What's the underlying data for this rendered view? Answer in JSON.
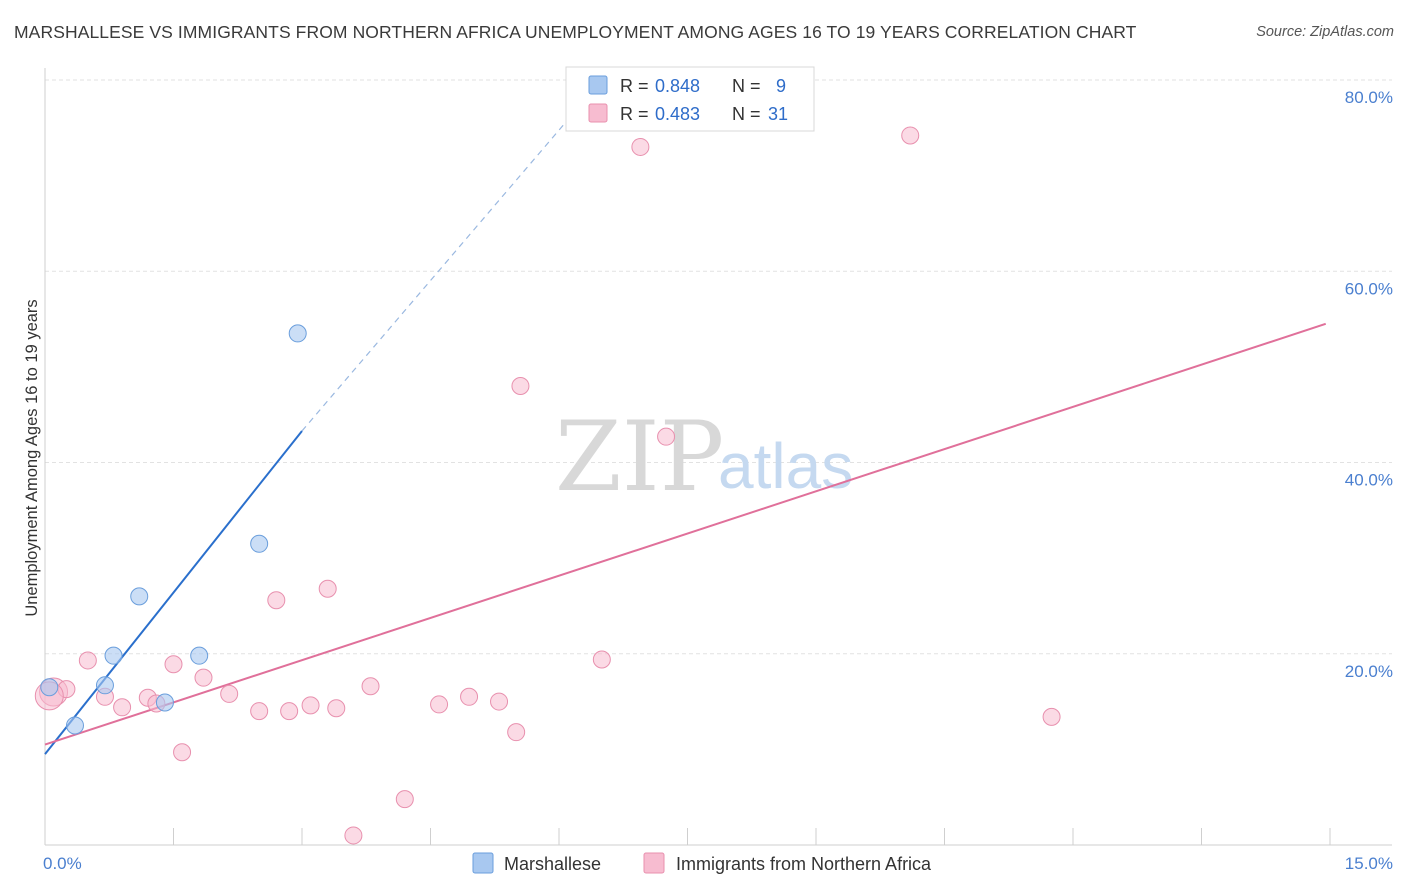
{
  "header": {
    "title": "MARSHALLESE VS IMMIGRANTS FROM NORTHERN AFRICA UNEMPLOYMENT AMONG AGES 16 TO 19 YEARS CORRELATION CHART",
    "source": "Source: ZipAtlas.com"
  },
  "watermark": {
    "zip": "ZIP",
    "atlas": "atlas"
  },
  "colors": {
    "marshallese": "#a8c8f0",
    "marshallese_stroke": "#6a9edc",
    "marshallese_line": "#2a6fcc",
    "northern_africa": "#f7bcd0",
    "northern_africa_stroke": "#e890ae",
    "northern_africa_line": "#e0709a",
    "grid": "#e2e2e2",
    "tick_label": "#4a7fcf"
  },
  "legend": {
    "rows": [
      {
        "r_label": "R = ",
        "r_value": "0.848",
        "n_label": "N = ",
        "n_value": "9"
      },
      {
        "r_label": "R = ",
        "r_value": "0.483",
        "n_label": "N = ",
        "n_value": "31"
      }
    ]
  },
  "chart_data": {
    "type": "scatter",
    "title": "MARSHALLESE VS IMMIGRANTS FROM NORTHERN AFRICA UNEMPLOYMENT AMONG AGES 16 TO 19 YEARS CORRELATION CHART",
    "xlabel": "",
    "ylabel": "Unemployment Among Ages 16 to 19 years",
    "xlim": [
      0,
      15
    ],
    "ylim": [
      0,
      80
    ],
    "x_tick_labels": [
      "0.0%",
      "15.0%"
    ],
    "y_ticks": [
      20,
      40,
      60,
      80
    ],
    "y_tick_labels": [
      "20.0%",
      "40.0%",
      "60.0%",
      "80.0%"
    ],
    "series": [
      {
        "name": "Marshallese",
        "R": 0.848,
        "N": 9,
        "points": [
          [
            0.05,
            16.5
          ],
          [
            0.35,
            12.5
          ],
          [
            0.7,
            16.7
          ],
          [
            0.8,
            19.8
          ],
          [
            1.1,
            26.0
          ],
          [
            1.4,
            14.9
          ],
          [
            1.8,
            19.8
          ],
          [
            2.5,
            31.5
          ],
          [
            2.95,
            53.5
          ]
        ],
        "trend": {
          "x0": 0.0,
          "y0": 9.5,
          "x1": 3.0,
          "y1": 43.3,
          "dashed_to_x": 6.5,
          "dashed_to_y": 80.0
        }
      },
      {
        "name": "Immigrants from Northern Africa",
        "R": 0.483,
        "N": 31,
        "points": [
          [
            0.1,
            16.0
          ],
          [
            0.25,
            16.3
          ],
          [
            0.5,
            19.3
          ],
          [
            0.7,
            15.5
          ],
          [
            0.9,
            14.4
          ],
          [
            1.2,
            15.4
          ],
          [
            1.5,
            18.9
          ],
          [
            1.6,
            9.7
          ],
          [
            1.85,
            17.5
          ],
          [
            2.15,
            15.8
          ],
          [
            2.5,
            14.0
          ],
          [
            2.7,
            25.6
          ],
          [
            2.85,
            14.0
          ],
          [
            3.1,
            14.6
          ],
          [
            3.3,
            26.8
          ],
          [
            3.4,
            14.3
          ],
          [
            3.6,
            1.0
          ],
          [
            3.8,
            16.6
          ],
          [
            4.2,
            4.8
          ],
          [
            4.6,
            14.7
          ],
          [
            4.95,
            15.5
          ],
          [
            5.3,
            15.0
          ],
          [
            5.5,
            11.8
          ],
          [
            5.55,
            48.0
          ],
          [
            6.5,
            19.4
          ],
          [
            6.95,
            73.0
          ],
          [
            7.25,
            42.7
          ],
          [
            10.1,
            74.2
          ],
          [
            11.75,
            13.4
          ],
          [
            0.05,
            15.6
          ],
          [
            1.3,
            14.8
          ]
        ],
        "trend": {
          "x0": 0.0,
          "y0": 10.5,
          "x1": 14.95,
          "y1": 54.5
        }
      }
    ],
    "grid": true,
    "legend_position": "top-center"
  },
  "bottom_legend": {
    "items": [
      {
        "label": "Marshallese"
      },
      {
        "label": "Immigrants from Northern Africa"
      }
    ]
  }
}
